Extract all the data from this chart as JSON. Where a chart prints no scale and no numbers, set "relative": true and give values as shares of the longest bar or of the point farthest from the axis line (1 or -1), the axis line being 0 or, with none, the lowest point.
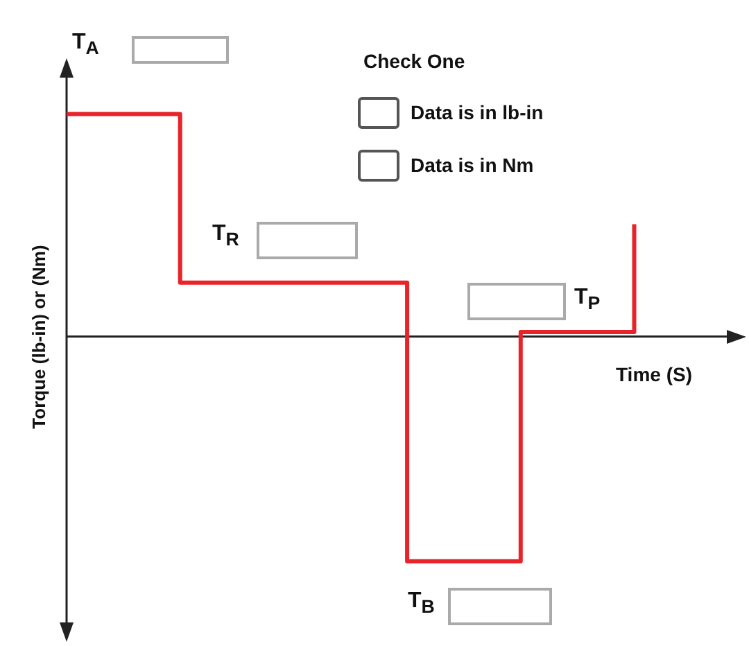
{
  "chart_data": {
    "type": "step",
    "relative": true,
    "xlabel": "Time (S)",
    "ylabel": "Torque (lb-in) or (Nm)",
    "categories": [
      null,
      null,
      null,
      null,
      null,
      null
    ],
    "values": [
      0.99,
      0.24,
      0.24,
      -1,
      0.02,
      0.5
    ],
    "color": "#e8232a",
    "line_style": "solid",
    "annotations": [
      "T$_{A}$",
      "T$_{R}$",
      "T$_{P}$",
      "T$_{B}$",
      "Check One",
      "Data is in lb-in",
      "Data is in Nm"
    ]
  }
}
